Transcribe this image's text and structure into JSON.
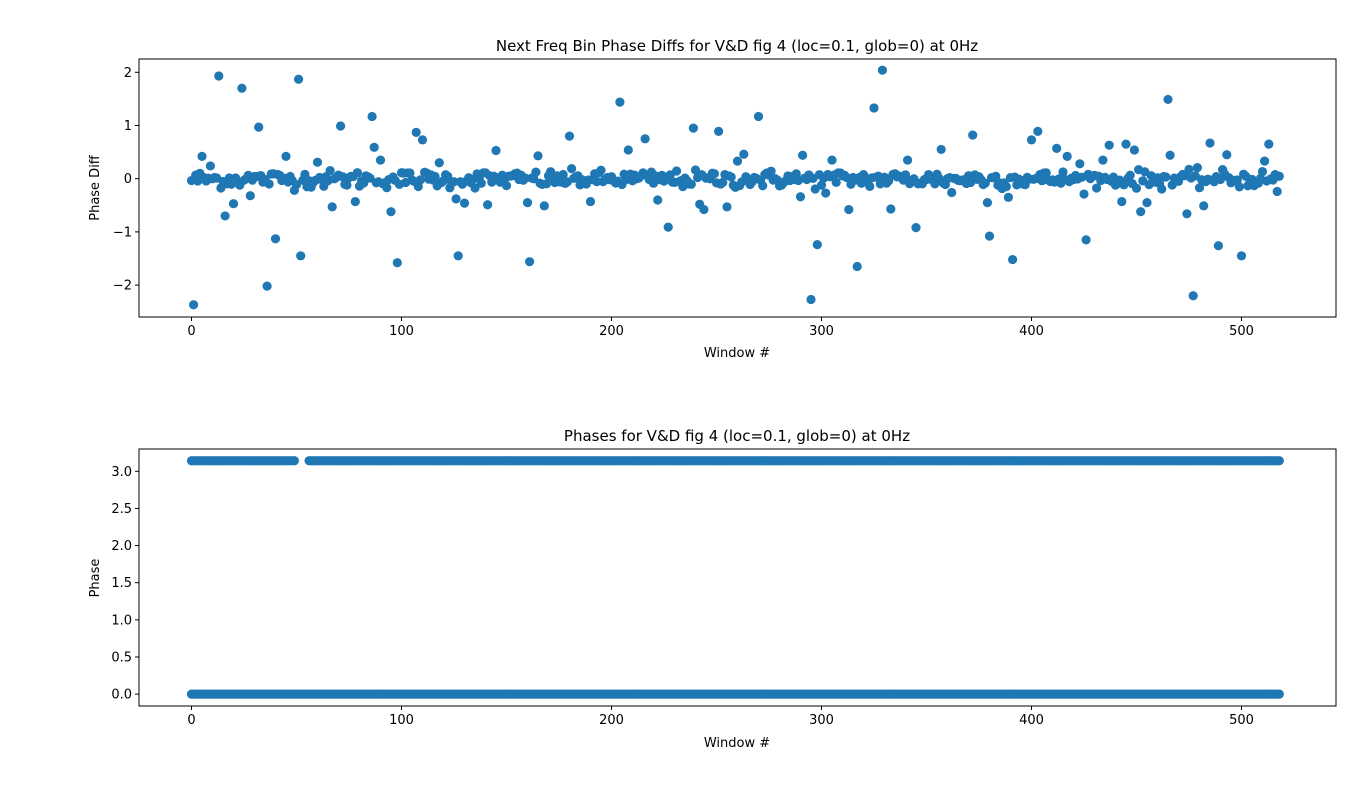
{
  "chart_data": [
    {
      "type": "scatter",
      "title": "Next Freq Bin Phase Diffs for V&D fig 4 (loc=0.1, glob=0) at 0Hz",
      "xlabel": "Window #",
      "ylabel": "Phase Diff",
      "xlim": [
        -25,
        545
      ],
      "ylim": [
        -2.6,
        2.25
      ],
      "xticks": [
        0,
        100,
        200,
        300,
        400,
        500
      ],
      "yticks": [
        -2,
        -1,
        0,
        1,
        2
      ],
      "xtick_labels": [
        "0",
        "100",
        "200",
        "300",
        "400",
        "500"
      ],
      "ytick_labels": [
        "−2",
        "−1",
        "0",
        "1",
        "2"
      ],
      "grid": false,
      "color": "#1f77b4",
      "outliers": [
        [
          1,
          -2.37
        ],
        [
          5,
          0.42
        ],
        [
          9,
          0.24
        ],
        [
          13,
          1.93
        ],
        [
          16,
          -0.7
        ],
        [
          20,
          -0.47
        ],
        [
          24,
          1.7
        ],
        [
          28,
          -0.32
        ],
        [
          32,
          0.97
        ],
        [
          36,
          -2.02
        ],
        [
          40,
          -1.13
        ],
        [
          45,
          0.42
        ],
        [
          51,
          1.87
        ],
        [
          52,
          -1.45
        ],
        [
          60,
          0.31
        ],
        [
          67,
          -0.53
        ],
        [
          71,
          0.99
        ],
        [
          78,
          -0.43
        ],
        [
          86,
          1.17
        ],
        [
          87,
          0.59
        ],
        [
          90,
          0.35
        ],
        [
          95,
          -0.62
        ],
        [
          98,
          -1.58
        ],
        [
          107,
          0.87
        ],
        [
          110,
          0.73
        ],
        [
          118,
          0.3
        ],
        [
          126,
          -0.38
        ],
        [
          127,
          -1.45
        ],
        [
          130,
          -0.46
        ],
        [
          141,
          -0.49
        ],
        [
          145,
          0.53
        ],
        [
          160,
          -0.45
        ],
        [
          161,
          -1.56
        ],
        [
          165,
          0.43
        ],
        [
          168,
          -0.51
        ],
        [
          180,
          0.8
        ],
        [
          190,
          -0.43
        ],
        [
          204,
          1.44
        ],
        [
          208,
          0.54
        ],
        [
          216,
          0.75
        ],
        [
          222,
          -0.4
        ],
        [
          227,
          -0.91
        ],
        [
          239,
          0.95
        ],
        [
          242,
          -0.48
        ],
        [
          244,
          -0.58
        ],
        [
          251,
          0.89
        ],
        [
          255,
          -0.53
        ],
        [
          260,
          0.33
        ],
        [
          263,
          0.46
        ],
        [
          270,
          1.17
        ],
        [
          290,
          -0.34
        ],
        [
          291,
          0.44
        ],
        [
          295,
          -2.27
        ],
        [
          298,
          -1.24
        ],
        [
          302,
          -0.27
        ],
        [
          305,
          0.35
        ],
        [
          313,
          -0.58
        ],
        [
          317,
          -1.65
        ],
        [
          325,
          1.33
        ],
        [
          329,
          2.04
        ],
        [
          333,
          -0.57
        ],
        [
          341,
          0.35
        ],
        [
          345,
          -0.92
        ],
        [
          357,
          0.55
        ],
        [
          362,
          -0.26
        ],
        [
          372,
          0.82
        ],
        [
          379,
          -0.45
        ],
        [
          380,
          -1.08
        ],
        [
          389,
          -0.35
        ],
        [
          391,
          -1.52
        ],
        [
          400,
          0.73
        ],
        [
          403,
          0.89
        ],
        [
          412,
          0.57
        ],
        [
          417,
          0.42
        ],
        [
          423,
          0.28
        ],
        [
          426,
          -1.15
        ],
        [
          434,
          0.35
        ],
        [
          437,
          0.63
        ],
        [
          443,
          -0.43
        ],
        [
          445,
          0.65
        ],
        [
          449,
          0.54
        ],
        [
          452,
          -0.62
        ],
        [
          455,
          -0.45
        ],
        [
          465,
          1.49
        ],
        [
          466,
          0.44
        ],
        [
          474,
          -0.66
        ],
        [
          477,
          -2.2
        ],
        [
          482,
          -0.51
        ],
        [
          485,
          0.67
        ],
        [
          489,
          -1.26
        ],
        [
          493,
          0.45
        ],
        [
          500,
          -1.45
        ],
        [
          511,
          0.33
        ],
        [
          513,
          0.65
        ],
        [
          517,
          -0.24
        ]
      ]
    },
    {
      "type": "scatter",
      "title": "Phases for V&D fig 4 (loc=0.1, glob=0) at 0Hz",
      "xlabel": "Window #",
      "ylabel": "Phase",
      "xlim": [
        -25,
        545
      ],
      "ylim": [
        -0.16,
        3.3
      ],
      "xticks": [
        0,
        100,
        200,
        300,
        400,
        500
      ],
      "yticks": [
        0.0,
        0.5,
        1.0,
        1.5,
        2.0,
        2.5,
        3.0
      ],
      "xtick_labels": [
        "0",
        "100",
        "200",
        "300",
        "400",
        "500"
      ],
      "ytick_labels": [
        "0.0",
        "0.5",
        "1.0",
        "1.5",
        "2.0",
        "2.5",
        "3.0"
      ],
      "grid": false,
      "color": "#1f77b4",
      "levels": [
        0.0,
        3.14159
      ],
      "x_range": [
        0,
        518
      ],
      "gaps_at_pi": [
        [
          50,
          55
        ]
      ]
    }
  ]
}
